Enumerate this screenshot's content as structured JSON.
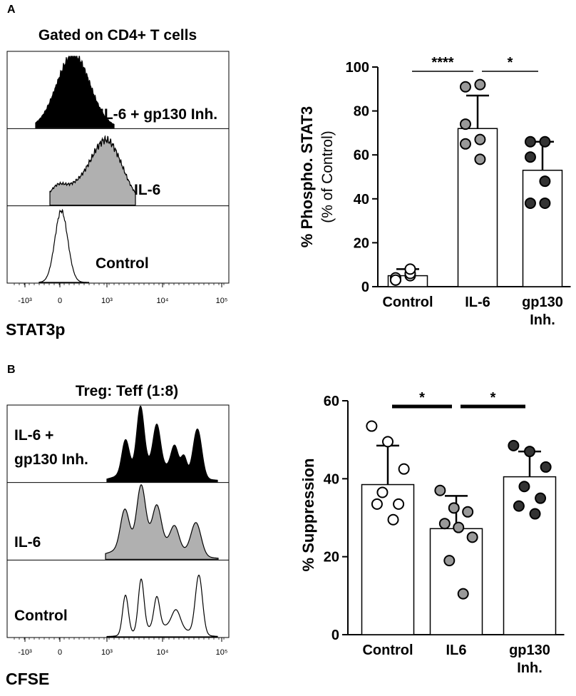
{
  "panels": {
    "A": {
      "label": "A",
      "histogram": {
        "title": "Gated on CD4+ T cells",
        "xlabel": "STAT3p",
        "ticks": [
          "-10³",
          "0",
          "10³",
          "10⁴",
          "10⁵"
        ],
        "tracks": [
          {
            "label": "IL-6 + gp130 Inh.",
            "fill": "#000000"
          },
          {
            "label": "IL-6",
            "fill": "#b0b0b0"
          },
          {
            "label": "Control",
            "fill": "none"
          }
        ]
      }
    },
    "B": {
      "label": "B",
      "histogram": {
        "title": "Treg: Teff (1:8)",
        "xlabel": "CFSE",
        "ticks": [
          "-10³",
          "0",
          "10³",
          "10⁴",
          "10⁵"
        ],
        "tracks": [
          {
            "label_lines": [
              "IL-6 +",
              "gp130 Inh."
            ],
            "fill": "#000000"
          },
          {
            "label_lines": [
              "IL-6"
            ],
            "fill": "#b0b0b0"
          },
          {
            "label_lines": [
              "Control"
            ],
            "fill": "none"
          }
        ]
      }
    }
  },
  "chart_data": [
    {
      "type": "bar",
      "panel": "A",
      "ylabel": "% Phospho. STAT3",
      "ylabel2": "(% of Control)",
      "ylim": [
        0,
        100
      ],
      "yticks": [
        0,
        20,
        40,
        60,
        80,
        100
      ],
      "categories": [
        {
          "lines": [
            "Control"
          ]
        },
        {
          "lines": [
            "IL-6"
          ]
        },
        {
          "lines": [
            "gp130",
            "Inh."
          ]
        }
      ],
      "means": [
        5,
        72,
        53
      ],
      "sd": [
        3,
        15,
        13
      ],
      "points": [
        {
          "values": [
            3,
            5,
            4,
            6,
            3,
            8
          ],
          "color": "#ffffff"
        },
        {
          "values": [
            91,
            92,
            74,
            67,
            65,
            58
          ],
          "color": "#999999"
        },
        {
          "values": [
            66,
            66,
            59,
            48,
            38,
            38
          ],
          "color": "#333333"
        }
      ],
      "significance": [
        {
          "from": 0,
          "to": 1,
          "label": "****"
        },
        {
          "from": 1,
          "to": 2,
          "label": "*"
        }
      ]
    },
    {
      "type": "bar",
      "panel": "B",
      "ylabel": "% Suppression",
      "ylim": [
        0,
        60
      ],
      "yticks": [
        0,
        20,
        40,
        60
      ],
      "categories": [
        {
          "lines": [
            "Control"
          ]
        },
        {
          "lines": [
            "IL6"
          ]
        },
        {
          "lines": [
            "gp130",
            "Inh."
          ]
        }
      ],
      "means": [
        38.5,
        27.2,
        40.5
      ],
      "sd": [
        10,
        8.4,
        6.5
      ],
      "points": [
        {
          "values": [
            53.5,
            49.5,
            42.5,
            36.5,
            33.5,
            33.5,
            29.5
          ],
          "color": "#ffffff"
        },
        {
          "values": [
            37,
            32.5,
            31.5,
            28.5,
            27.5,
            25,
            19,
            10.5
          ],
          "color": "#999999"
        },
        {
          "values": [
            48.5,
            47,
            43,
            38,
            35,
            33,
            31
          ],
          "color": "#333333"
        }
      ],
      "significance": [
        {
          "from": 0,
          "to": 1,
          "label": "*"
        },
        {
          "from": 1,
          "to": 2,
          "label": "*"
        }
      ]
    }
  ]
}
